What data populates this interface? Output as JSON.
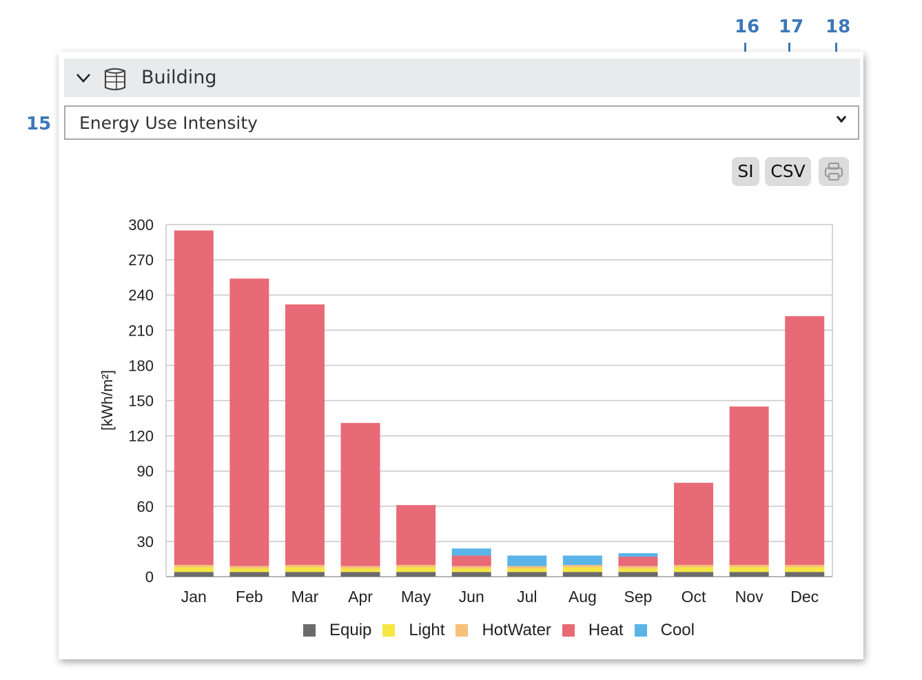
{
  "callouts": {
    "c15": "15",
    "c16": "16",
    "c17": "17",
    "c18": "18"
  },
  "header": {
    "title": "Building",
    "collapse_icon": "chevron-down-icon",
    "building_icon": "building-icon"
  },
  "select": {
    "value": "Energy Use Intensity",
    "arrow_icon": "chevron-down-icon"
  },
  "buttons": {
    "si": "SI",
    "csv": "CSV",
    "print_icon": "printer-icon"
  },
  "chart_data": {
    "type": "bar",
    "stacked": true,
    "ylabel": "[kWh/m²]",
    "xlabel": "",
    "ylim": [
      0,
      300
    ],
    "yticks": [
      0,
      30,
      60,
      90,
      120,
      150,
      180,
      210,
      240,
      270,
      300
    ],
    "grid": true,
    "legend_position": "bottom",
    "categories": [
      "Jan",
      "Feb",
      "Mar",
      "Apr",
      "May",
      "Jun",
      "Jul",
      "Aug",
      "Sep",
      "Oct",
      "Nov",
      "Dec"
    ],
    "series": [
      {
        "name": "Equip",
        "color": "#6b6b6b",
        "values": [
          4,
          4,
          4,
          4,
          4,
          4,
          4,
          4,
          4,
          4,
          4,
          4
        ]
      },
      {
        "name": "Light",
        "color": "#f5e642",
        "values": [
          4,
          3,
          4,
          3,
          4,
          3,
          3,
          4,
          3,
          4,
          4,
          4
        ]
      },
      {
        "name": "HotWater",
        "color": "#f6c17a",
        "values": [
          2,
          2,
          2,
          2,
          2,
          2,
          2,
          2,
          2,
          2,
          2,
          2
        ]
      },
      {
        "name": "Heat",
        "color": "#e86a76",
        "values": [
          285,
          245,
          222,
          122,
          51,
          9,
          0,
          0,
          8,
          70,
          135,
          212
        ]
      },
      {
        "name": "Cool",
        "color": "#5ab4e8",
        "values": [
          0,
          0,
          0,
          0,
          0,
          6,
          9,
          8,
          3,
          0,
          0,
          0
        ]
      }
    ]
  }
}
